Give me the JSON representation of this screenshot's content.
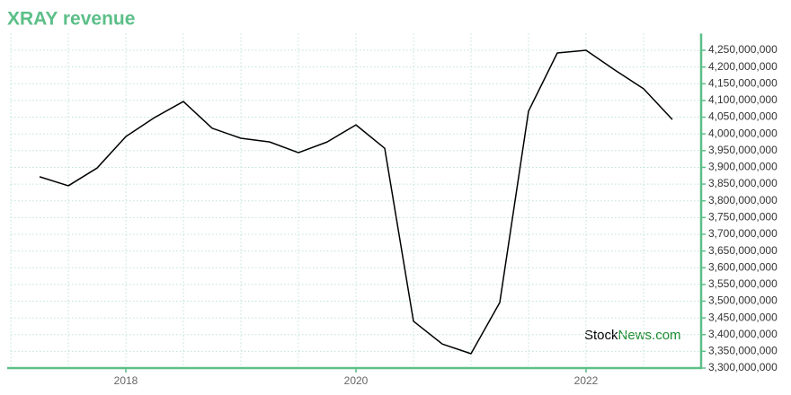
{
  "chart_data": {
    "type": "line",
    "title": "XRAY revenue",
    "watermark": [
      "Stock",
      "News.com"
    ],
    "x": [
      2017.25,
      2017.5,
      2017.75,
      2018,
      2018.25,
      2018.5,
      2018.75,
      2019,
      2019.25,
      2019.5,
      2019.75,
      2020,
      2020.25,
      2020.5,
      2020.75,
      2021,
      2021.25,
      2021.5,
      2021.75,
      2022,
      2022.25,
      2022.5,
      2022.75
    ],
    "series": [
      {
        "name": "revenue",
        "color": "#000000",
        "values": [
          3872000000,
          3845000000,
          3898000000,
          3992000000,
          4049000000,
          4097000000,
          4017000000,
          3987000000,
          3976000000,
          3944000000,
          3976000000,
          4027000000,
          3957000000,
          3440000000,
          3372000000,
          3343000000,
          3496000000,
          4068000000,
          4242000000,
          4250000000,
          4191000000,
          4135000000,
          4043000000
        ]
      }
    ],
    "xlim": [
      2017,
      2023
    ],
    "xticks": [
      2018,
      2020,
      2022
    ],
    "x_minor_ticks": [
      2017,
      2017.5,
      2018.5,
      2019,
      2019.5,
      2020.5,
      2021,
      2021.5,
      2022.5,
      2023
    ],
    "ylim": [
      3300000000,
      4300000000
    ],
    "yticks": [
      {
        "value": 3300000000,
        "label": "3,300,000,000"
      },
      {
        "value": 3350000000,
        "label": "3,350,000,000"
      },
      {
        "value": 3400000000,
        "label": "3,400,000,000"
      },
      {
        "value": 3450000000,
        "label": "3,450,000,000"
      },
      {
        "value": 3500000000,
        "label": "3,500,000,000"
      },
      {
        "value": 3550000000,
        "label": "3,550,000,000"
      },
      {
        "value": 3600000000,
        "label": "3,600,000,000"
      },
      {
        "value": 3650000000,
        "label": "3,650,000,000"
      },
      {
        "value": 3700000000,
        "label": "3,700,000,000"
      },
      {
        "value": 3750000000,
        "label": "3,750,000,000"
      },
      {
        "value": 3800000000,
        "label": "3,800,000,000"
      },
      {
        "value": 3850000000,
        "label": "3,850,000,000"
      },
      {
        "value": 3900000000,
        "label": "3,900,000,000"
      },
      {
        "value": 3950000000,
        "label": "3,950,000,000"
      },
      {
        "value": 4000000000,
        "label": "4,000,000,000"
      },
      {
        "value": 4050000000,
        "label": "4,050,000,000"
      },
      {
        "value": 4100000000,
        "label": "4,100,000,000"
      },
      {
        "value": 4150000000,
        "label": "4,150,000,000"
      },
      {
        "value": 4200000000,
        "label": "4,200,000,000"
      },
      {
        "value": 4250000000,
        "label": "4,250,000,000"
      }
    ],
    "y_axis_side": "right",
    "grid": true,
    "accent_color": "#5cbf88"
  }
}
